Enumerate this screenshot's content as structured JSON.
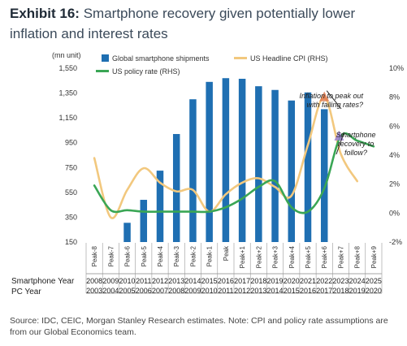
{
  "header": {
    "exhibit": "Exhibit 16:",
    "title": "Smartphone recovery given potentially lower inflation and interest rates"
  },
  "chart_data": {
    "type": "bar+line",
    "left_unit": "(mn unit)",
    "left_ticks": [
      "1,550",
      "1,350",
      "1,150",
      "950",
      "750",
      "550",
      "350",
      "150"
    ],
    "left_ylim": [
      150,
      1550
    ],
    "right_ticks": [
      "10%",
      "8%",
      "6%",
      "4%",
      "2%",
      "0%",
      "-2%"
    ],
    "right_ylim": [
      -2,
      10
    ],
    "peak_labels": [
      "Peak-8",
      "Peak-7",
      "Peak-6",
      "Peak-5",
      "Peak-4",
      "Peak-3",
      "Peak-2",
      "Peak-1",
      "Peak",
      "Peak+1",
      "Peak+2",
      "Peak+3",
      "Peak+4",
      "Peak+5",
      "Peak+6",
      "Peak+7",
      "Peak+8",
      "Peak+9"
    ],
    "row_labels": {
      "smartphone": "Smartphone Year",
      "pc": "PC Year"
    },
    "smartphone_years": [
      "2008",
      "2009",
      "2010",
      "2011",
      "2012",
      "2013",
      "2014",
      "2015",
      "2016",
      "2017",
      "2018",
      "2019",
      "2020",
      "2021",
      "2022",
      "2023",
      "2024",
      "2025"
    ],
    "pc_years": [
      "2003",
      "2004",
      "2005",
      "2006",
      "2007",
      "2008",
      "2009",
      "2010",
      "2011",
      "2012",
      "2013",
      "2014",
      "2015",
      "2016",
      "2017",
      "2018",
      "2019",
      "2020"
    ],
    "series": [
      {
        "name": "Global smartphone shipments",
        "kind": "bar",
        "axis": "left",
        "color": "#1f6fb2",
        "values": [
          null,
          null,
          305,
          490,
          725,
          1020,
          1300,
          1440,
          1470,
          1465,
          1405,
          1375,
          1290,
          1355,
          1220,
          null,
          null,
          null
        ]
      },
      {
        "name": "US Headline CPI (RHS)",
        "kind": "line",
        "axis": "right",
        "color": "#f2c87e",
        "values": [
          3.8,
          -0.3,
          1.6,
          3.1,
          2.1,
          1.5,
          1.6,
          0.1,
          1.3,
          2.1,
          2.4,
          1.8,
          1.2,
          4.7,
          8.0,
          4.1,
          2.2,
          null
        ]
      },
      {
        "name": "US policy rate (RHS)",
        "kind": "line",
        "axis": "right",
        "color": "#3aa655",
        "values": [
          1.9,
          0.2,
          0.2,
          0.1,
          0.1,
          0.1,
          0.1,
          0.1,
          0.4,
          1.0,
          1.8,
          2.2,
          0.4,
          0.1,
          1.7,
          5.3,
          5.0,
          4.6
        ]
      }
    ],
    "annotations": [
      {
        "text_lines": [
          "Inflation to peak out",
          "with falling rates?"
        ]
      },
      {
        "text_lines": [
          "Smartphone",
          "recovery to",
          "follow?"
        ]
      }
    ],
    "legend": "top"
  },
  "source": "Source: IDC, CEIC, Morgan Stanley Research estimates. Note: CPI and policy rate assumptions are from our Global Economics team.",
  "colors": {
    "bar": "#1f6fb2",
    "cpi": "#f2c87e",
    "rate": "#3aa655",
    "marker": "#e07a4f"
  }
}
